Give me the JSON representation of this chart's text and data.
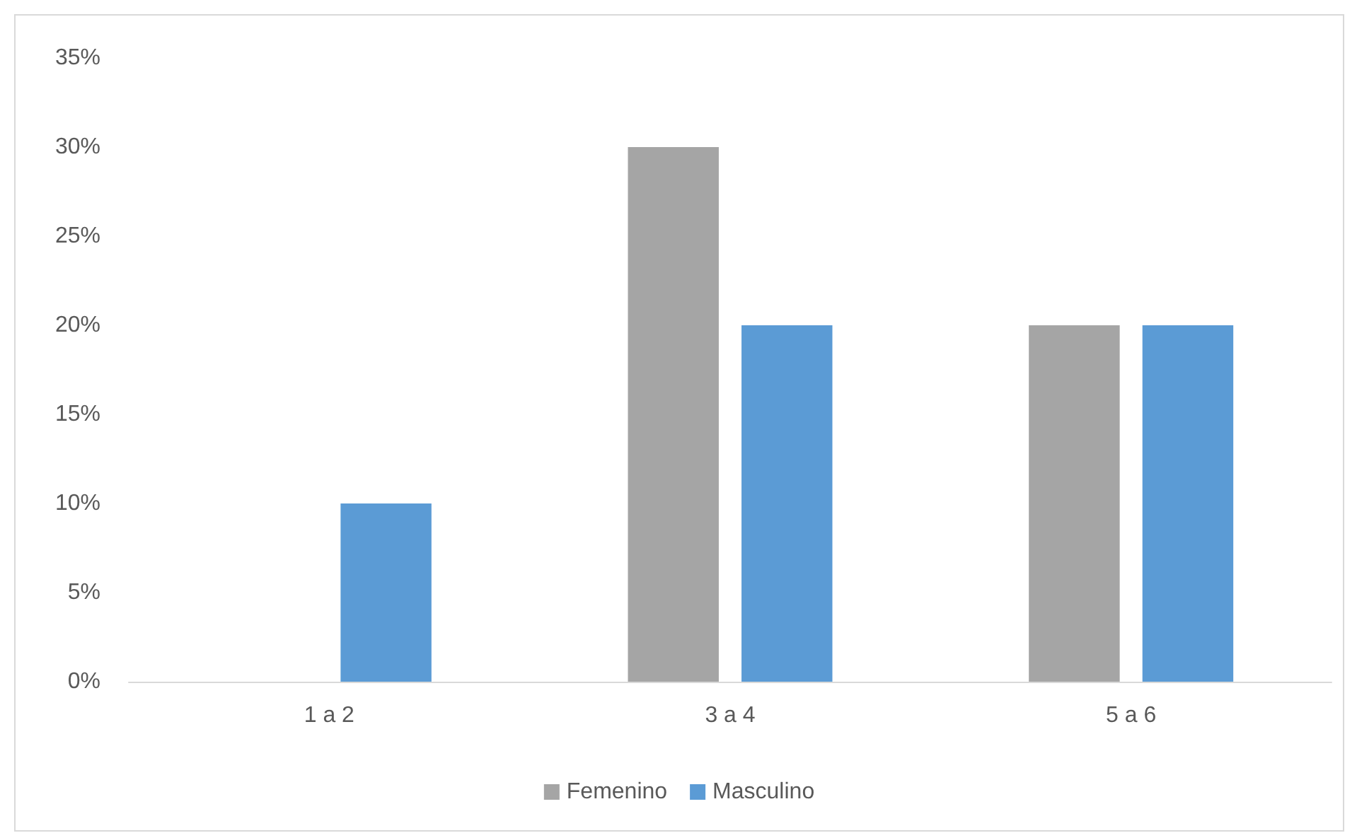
{
  "chart_data": {
    "type": "bar",
    "categories": [
      "1 a 2",
      "3 a 4",
      "5 a 6"
    ],
    "series": [
      {
        "name": "Femenino",
        "color": "#a5a5a5",
        "values": [
          0,
          30,
          20
        ]
      },
      {
        "name": "Masculino",
        "color": "#5b9bd5",
        "values": [
          10,
          20,
          20
        ]
      }
    ],
    "ylim": [
      0,
      35
    ],
    "yticks": [
      {
        "value": 0,
        "label": "0%"
      },
      {
        "value": 5,
        "label": "5%"
      },
      {
        "value": 10,
        "label": "10%"
      },
      {
        "value": 15,
        "label": "15%"
      },
      {
        "value": 20,
        "label": "20%"
      },
      {
        "value": 25,
        "label": "25%"
      },
      {
        "value": 30,
        "label": "30%"
      },
      {
        "value": 35,
        "label": "35%"
      }
    ],
    "grid": false,
    "legend": "bottom"
  }
}
